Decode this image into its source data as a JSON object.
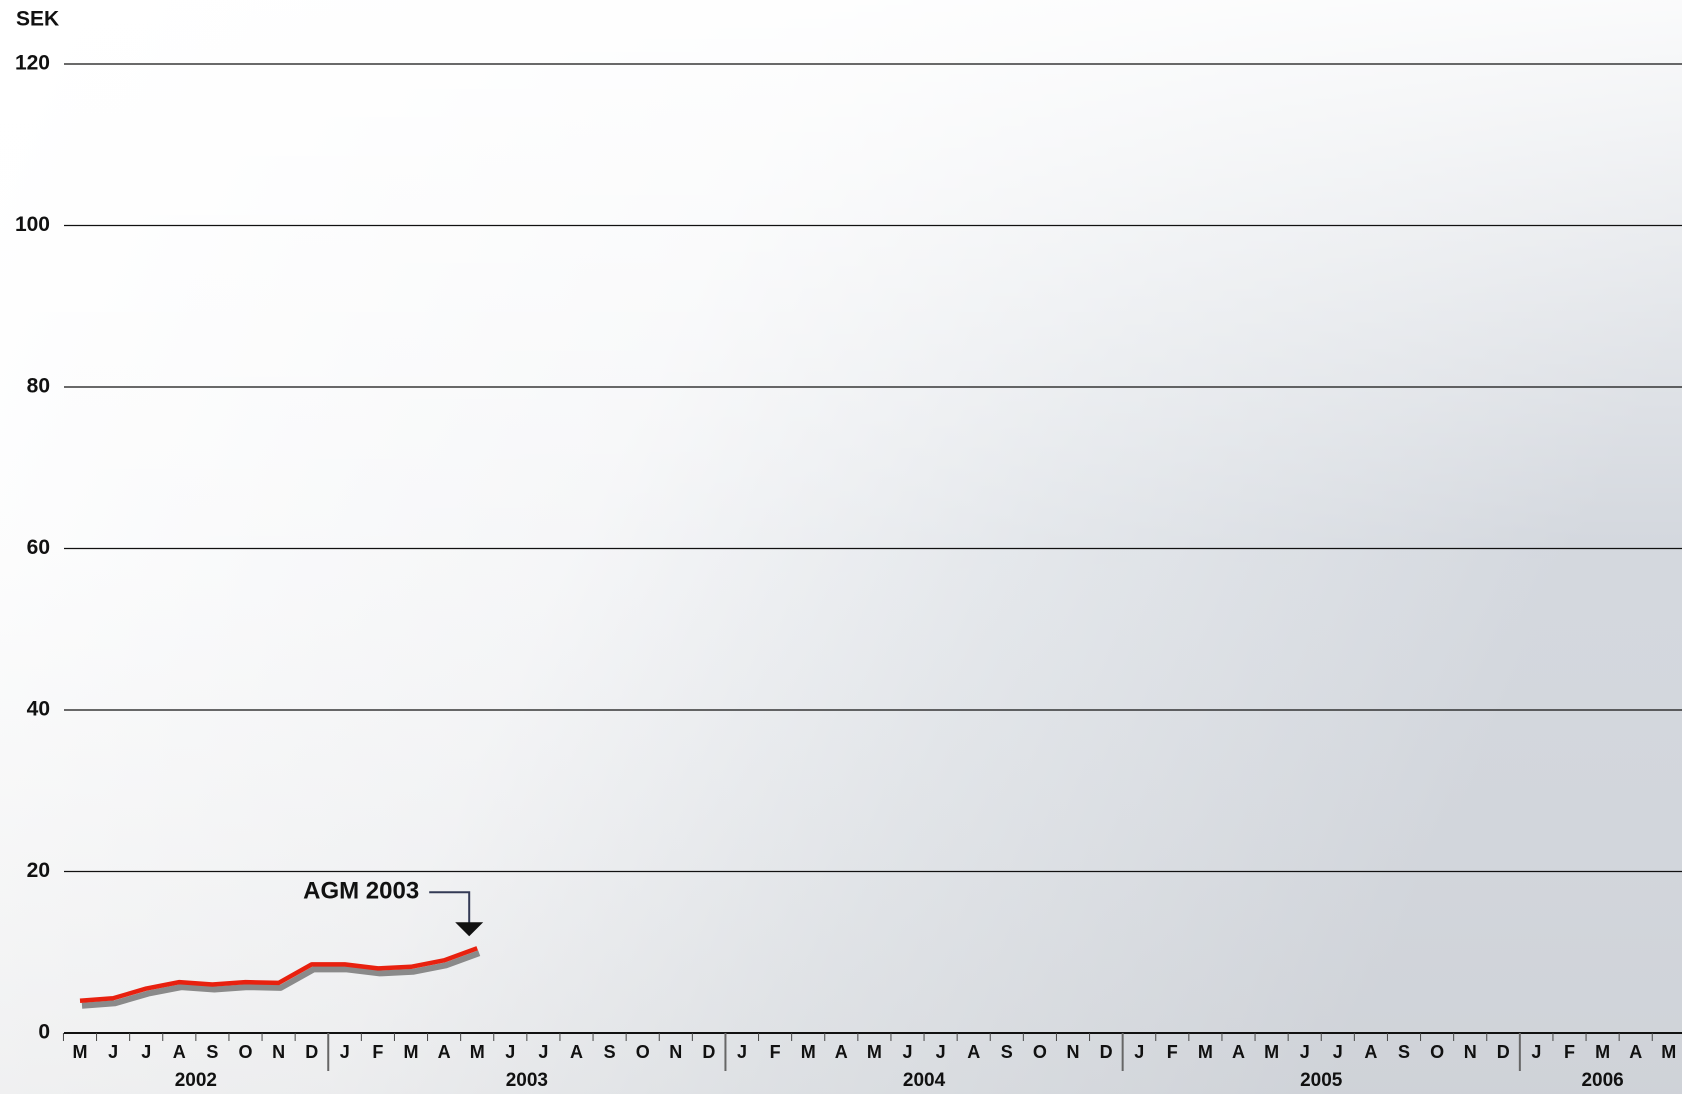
{
  "chart_data": {
    "type": "line",
    "y_label": "SEK",
    "ylim": [
      0,
      120
    ],
    "yticks": [
      0,
      20,
      40,
      60,
      80,
      100,
      120
    ],
    "grid": true,
    "groups": [
      {
        "label": "2002",
        "categories": [
          "M",
          "J",
          "J",
          "A",
          "S",
          "O",
          "N",
          "D"
        ]
      },
      {
        "label": "2003",
        "categories": [
          "J",
          "F",
          "M",
          "A",
          "M",
          "J",
          "J",
          "A",
          "S",
          "O",
          "N",
          "D"
        ]
      },
      {
        "label": "2004",
        "categories": [
          "J",
          "F",
          "M",
          "A",
          "M",
          "J",
          "J",
          "A",
          "S",
          "O",
          "N",
          "D"
        ]
      },
      {
        "label": "2005",
        "categories": [
          "J",
          "F",
          "M",
          "A",
          "M",
          "J",
          "J",
          "A",
          "S",
          "O",
          "N",
          "D"
        ]
      },
      {
        "label": "2006",
        "categories": [
          "J",
          "F",
          "M",
          "A",
          "M"
        ]
      }
    ],
    "series": [
      {
        "color": "#e8210f",
        "values": [
          4,
          4.3,
          5.5,
          6.3,
          6,
          6.3,
          6.2,
          8.5,
          8.5,
          8,
          8.2,
          9,
          10.5,
          null,
          null,
          null,
          null,
          null,
          null,
          null,
          null,
          null,
          null,
          null,
          null,
          null,
          null,
          null,
          null,
          null,
          null,
          null,
          null,
          null,
          null,
          null,
          null,
          null,
          null,
          null,
          null,
          null,
          null,
          null,
          null,
          null,
          null,
          null,
          null
        ]
      }
    ],
    "annotations": [
      {
        "text": "AGM 2003"
      }
    ]
  }
}
